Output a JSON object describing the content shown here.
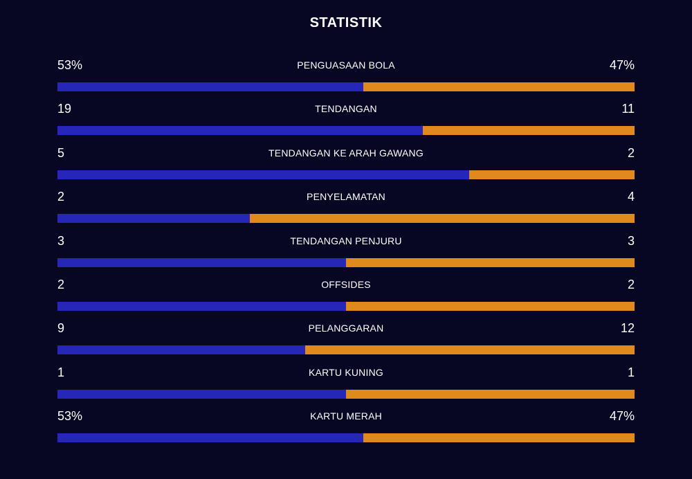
{
  "title": "STATISTIK",
  "colors": {
    "background": "#070724",
    "home_bar": "#2626b8",
    "away_bar": "#e0891c",
    "text": "#ffffff"
  },
  "stats": [
    {
      "label": "PENGUASAAN BOLA",
      "home": "53%",
      "away": "47%",
      "home_share": 0.53
    },
    {
      "label": "TENDANGAN",
      "home": "19",
      "away": "11",
      "home_share": 0.633
    },
    {
      "label": "TENDANGAN KE ARAH GAWANG",
      "home": "5",
      "away": "2",
      "home_share": 0.714
    },
    {
      "label": "PENYELAMATAN",
      "home": "2",
      "away": "4",
      "home_share": 0.333
    },
    {
      "label": "TENDANGAN PENJURU",
      "home": "3",
      "away": "3",
      "home_share": 0.5
    },
    {
      "label": "OFFSIDES",
      "home": "2",
      "away": "2",
      "home_share": 0.5
    },
    {
      "label": "PELANGGARAN",
      "home": "9",
      "away": "12",
      "home_share": 0.429
    },
    {
      "label": "KARTU KUNING",
      "home": "1",
      "away": "1",
      "home_share": 0.5
    },
    {
      "label": "KARTU MERAH",
      "home": "53%",
      "away": "47%",
      "home_share": 0.53
    }
  ]
}
